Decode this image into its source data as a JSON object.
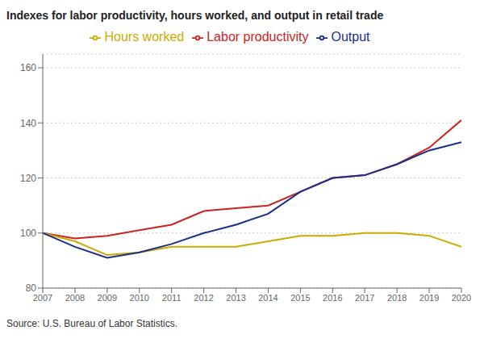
{
  "chart_data": {
    "type": "line",
    "title": "Indexes for labor productivity, hours worked, and output in retail trade",
    "source": "Source: U.S. Bureau of Labor Statistics.",
    "x": [
      2007,
      2008,
      2009,
      2010,
      2011,
      2012,
      2013,
      2014,
      2015,
      2016,
      2017,
      2018,
      2019,
      2020
    ],
    "xlim": [
      2007,
      2020
    ],
    "xticks": [
      2007,
      2008,
      2009,
      2010,
      2011,
      2012,
      2013,
      2014,
      2015,
      2016,
      2017,
      2018,
      2019,
      2020
    ],
    "series": [
      {
        "name": "Labor productivity",
        "color": "#cc2222",
        "values": [
          100,
          98,
          99,
          101,
          103,
          108,
          109,
          110,
          115,
          120,
          121,
          125,
          131,
          141
        ]
      },
      {
        "name": "Hours worked",
        "color": "#ccaa00",
        "values": [
          100,
          97,
          92,
          93,
          95,
          95,
          95,
          97,
          99,
          99,
          100,
          100,
          99,
          95
        ]
      },
      {
        "name": "Output",
        "color": "#1a2f8a",
        "values": [
          100,
          95,
          91,
          93,
          96,
          100,
          103,
          107,
          115,
          120,
          121,
          125,
          130,
          133
        ]
      }
    ],
    "ylim": [
      80,
      165
    ],
    "yticks": [
      80,
      100,
      120,
      140,
      160
    ],
    "grid": true,
    "legend": "top"
  }
}
